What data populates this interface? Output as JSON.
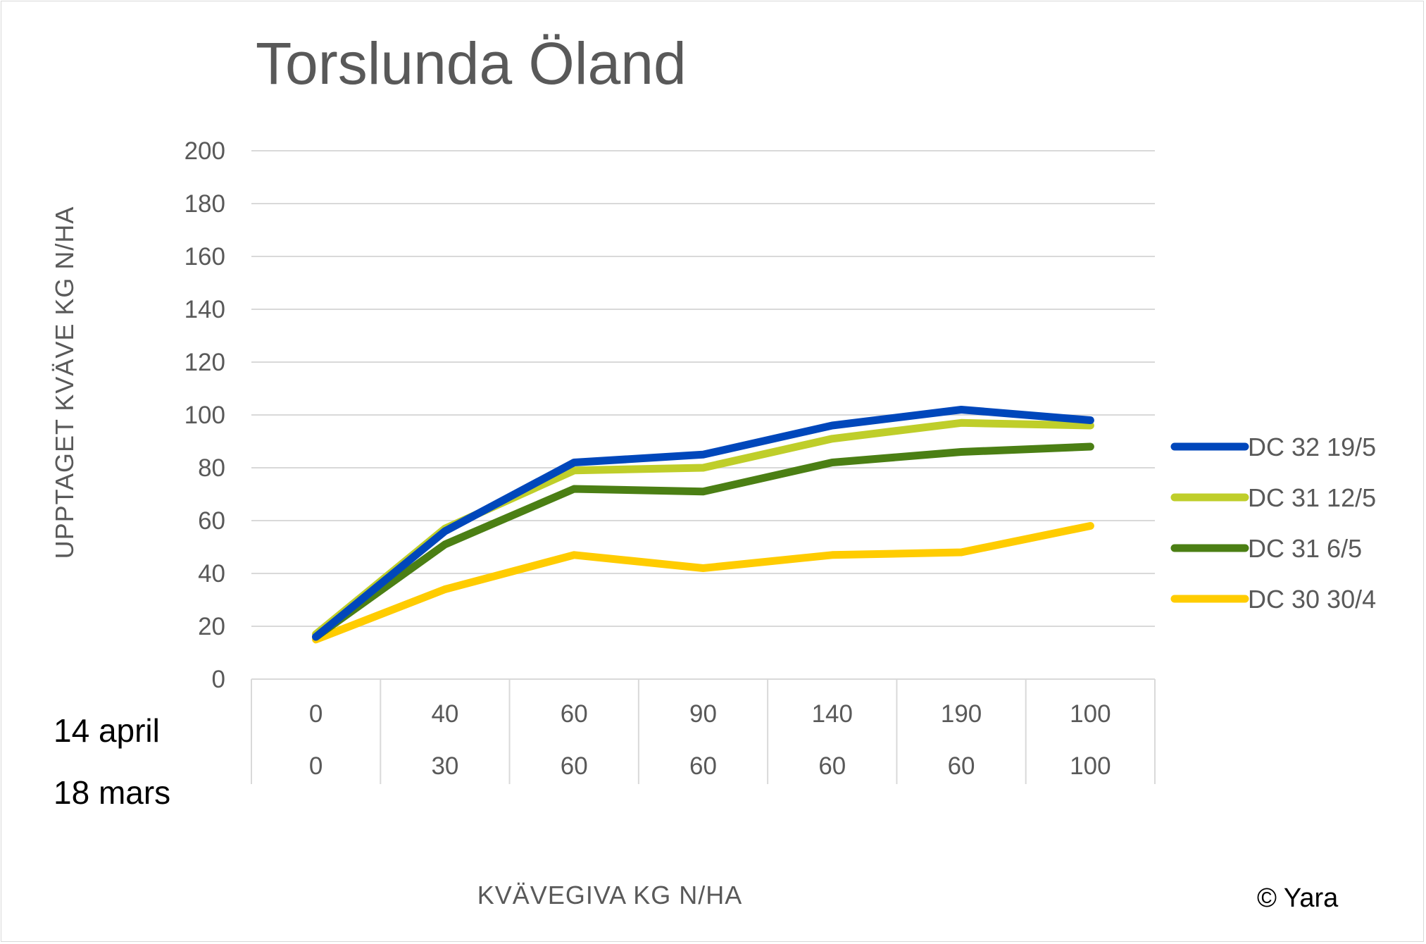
{
  "chart_data": {
    "type": "line",
    "title": "Torslunda Öland",
    "xlabel": "KVÄVEGIVA  KG N/HA",
    "ylabel": "UPPTAGET KVÄVE KG N/HA",
    "ylim": [
      0,
      200
    ],
    "yticks": [
      0,
      20,
      40,
      60,
      80,
      100,
      120,
      140,
      160,
      180,
      200
    ],
    "grid": true,
    "legend_position": "right",
    "category_row_labels": [
      "14 april",
      "18 mars"
    ],
    "categories": [
      [
        "0",
        "0"
      ],
      [
        "40",
        "30"
      ],
      [
        "60",
        "60"
      ],
      [
        "90",
        "60"
      ],
      [
        "140",
        "60"
      ],
      [
        "190",
        "60"
      ],
      [
        "100",
        "100"
      ]
    ],
    "series": [
      {
        "name": "DC 32 19/5",
        "color": "#0047BB",
        "values": [
          16,
          56,
          82,
          85,
          96,
          102,
          98
        ]
      },
      {
        "name": "DC 31 12/5",
        "color": "#BFCE2A",
        "values": [
          17,
          57,
          79,
          80,
          91,
          97,
          96
        ]
      },
      {
        "name": "DC 31 6/5",
        "color": "#4B7F14",
        "values": [
          16,
          51,
          72,
          71,
          82,
          86,
          88
        ]
      },
      {
        "name": "DC 30 30/4",
        "color": "#FFCC00",
        "values": [
          15,
          34,
          47,
          42,
          47,
          48,
          58
        ]
      }
    ]
  },
  "footer": {
    "copyright": "© Yara"
  }
}
